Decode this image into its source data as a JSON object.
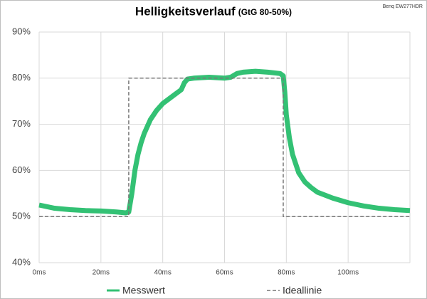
{
  "chart_data": {
    "type": "line",
    "title": "Helligkeitsverlauf",
    "subtitle": "(GtG 80-50%)",
    "annotation": "Benq EW277HDR",
    "xlim": [
      0,
      120
    ],
    "ylim": [
      40,
      90
    ],
    "xticks": [
      {
        "value": 0,
        "label": "0ms"
      },
      {
        "value": 20,
        "label": "20ms"
      },
      {
        "value": 40,
        "label": "40ms"
      },
      {
        "value": 60,
        "label": "60ms"
      },
      {
        "value": 80,
        "label": "80ms"
      },
      {
        "value": 100,
        "label": "100ms"
      }
    ],
    "yticks": [
      {
        "value": 40,
        "label": "40%"
      },
      {
        "value": 50,
        "label": "50%"
      },
      {
        "value": 60,
        "label": "60%"
      },
      {
        "value": 70,
        "label": "70%"
      },
      {
        "value": 80,
        "label": "80%"
      },
      {
        "value": 90,
        "label": "90%"
      }
    ],
    "grid": true,
    "series": [
      {
        "name": "Messwert",
        "color": "#33c174",
        "style": "solid",
        "x": [
          0,
          5,
          10,
          15,
          20,
          25,
          28,
          29,
          30,
          31,
          32,
          33,
          34,
          35,
          36,
          38,
          40,
          42,
          44,
          46,
          47,
          48,
          50,
          55,
          60,
          62,
          64,
          66,
          70,
          74,
          78,
          79,
          79.5,
          80,
          81,
          82,
          84,
          86,
          88,
          90,
          95,
          100,
          105,
          110,
          115,
          120
        ],
        "values": [
          52.5,
          51.8,
          51.5,
          51.3,
          51.2,
          51,
          50.8,
          51,
          55,
          60,
          63.5,
          66,
          68,
          69.5,
          71,
          73,
          74.5,
          75.5,
          76.5,
          77.5,
          79,
          79.8,
          80,
          80.2,
          80,
          80.2,
          81,
          81.3,
          81.5,
          81.3,
          81,
          80.5,
          77,
          72,
          67,
          63.5,
          59.5,
          57.5,
          56.3,
          55.3,
          54,
          53,
          52.3,
          51.8,
          51.5,
          51.3
        ]
      },
      {
        "name": "Ideallinie",
        "color": "#777777",
        "style": "dashed",
        "x": [
          0,
          29,
          29,
          79,
          79,
          120
        ],
        "values": [
          50,
          50,
          80,
          80,
          50,
          50
        ]
      }
    ]
  }
}
